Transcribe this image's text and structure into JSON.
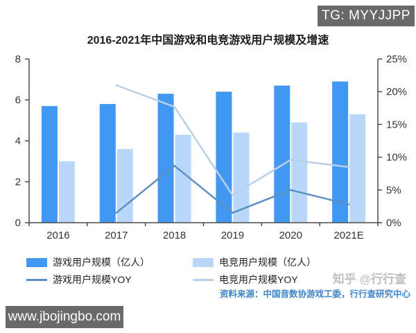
{
  "badge_top": {
    "label": "TG: MYYJJPP"
  },
  "badge_bottom": {
    "label": "www.jbojingbo.com"
  },
  "watermark": {
    "label": "知乎 @行行查"
  },
  "source": {
    "label": "资料来源：中国音数协游戏工委，行行查研究中心"
  },
  "colors": {
    "bar_dark": "#4298f0",
    "bar_light": "#b9d8f9",
    "line_dark": "#5b8fc4",
    "line_light": "#b9d0e8",
    "axis": "#4a4a4a",
    "tick_text": "#333333",
    "source_text": "#3e86c9",
    "badge_bg": "#6a6a6a"
  },
  "chart_data": {
    "type": "bar",
    "subtype": "grouped-bars-with-lines",
    "title": "2016-2021年中国游戏和电竞游戏用户规模及增速",
    "categories": [
      "2016",
      "2017",
      "2018",
      "2019",
      "2020",
      "2021E"
    ],
    "bar_series": [
      {
        "name": "游戏用户规模（亿人）",
        "axis": "left",
        "color": "#4298f0",
        "values": [
          5.7,
          5.8,
          6.3,
          6.4,
          6.7,
          6.9
        ]
      },
      {
        "name": "电竞用户规模（亿人）",
        "axis": "left",
        "color": "#b9d8f9",
        "values": [
          3.0,
          3.6,
          4.3,
          4.4,
          4.9,
          5.3
        ]
      }
    ],
    "line_series": [
      {
        "name": "游戏用户规模YOY",
        "axis": "right",
        "color": "#5b8fc4",
        "values": [
          null,
          1.5,
          8.7,
          1.5,
          5.0,
          2.8
        ]
      },
      {
        "name": "电竞用户规模YOY",
        "axis": "right",
        "color": "#b9d0e8",
        "values": [
          null,
          21.0,
          17.7,
          4.2,
          9.6,
          8.5
        ]
      }
    ],
    "left_axis": {
      "min": 0,
      "max": 8,
      "ticks": [
        0,
        2,
        4,
        6,
        8
      ]
    },
    "right_axis": {
      "min": 0,
      "max": 25,
      "ticks": [
        0,
        5,
        10,
        15,
        20,
        25
      ],
      "suffix": "%"
    },
    "xlabel": "",
    "ylabel": "",
    "grid": false,
    "legend_position": "bottom"
  }
}
